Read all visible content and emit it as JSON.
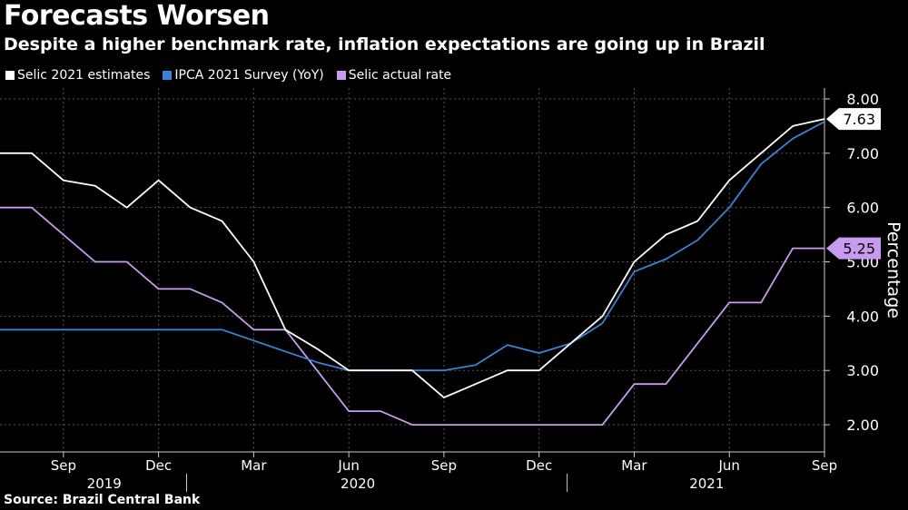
{
  "title": "Forecasts Worsen",
  "subtitle": "Despite a higher benchmark rate, inflation expectations are going up in Brazil",
  "source": "Source:  Brazil Central Bank",
  "chart_data": {
    "type": "line",
    "ylabel": "Percentage",
    "ylim": [
      1.5,
      8.2
    ],
    "y_ticks": [
      "2.00",
      "3.00",
      "4.00",
      "5.00",
      "6.00",
      "7.00",
      "8.00"
    ],
    "y_axis_side": "right",
    "x_range": [
      "2019-07",
      "2021-09"
    ],
    "x_tick_labels": [
      "Sep",
      "Dec",
      "Mar",
      "Jun",
      "Sep",
      "Dec",
      "Mar",
      "Jun",
      "Sep"
    ],
    "x_tick_months": [
      "2019-09",
      "2019-12",
      "2020-03",
      "2020-06",
      "2020-09",
      "2020-12",
      "2021-03",
      "2021-06",
      "2021-09"
    ],
    "year_labels": [
      {
        "label": "2019",
        "center": "2019-10"
      },
      {
        "label": "2020",
        "center": "2020-06"
      },
      {
        "label": "2021",
        "center": "2021-05"
      }
    ],
    "year_separators": [
      "2020-01",
      "2021-01"
    ],
    "grid": true,
    "legend_position": "top-left",
    "series": [
      {
        "name": "Selic 2021 estimates",
        "color": "#ffffff",
        "last_label": "7.63",
        "points": [
          [
            "2019-07",
            7.0
          ],
          [
            "2019-08",
            7.0
          ],
          [
            "2019-09",
            6.5
          ],
          [
            "2019-10",
            6.4
          ],
          [
            "2019-11",
            6.0
          ],
          [
            "2019-12",
            6.5
          ],
          [
            "2020-01",
            6.0
          ],
          [
            "2020-02",
            5.75
          ],
          [
            "2020-03",
            5.0
          ],
          [
            "2020-04",
            3.75
          ],
          [
            "2020-05",
            3.4
          ],
          [
            "2020-06",
            3.0
          ],
          [
            "2020-07",
            3.0
          ],
          [
            "2020-08",
            3.0
          ],
          [
            "2020-09",
            2.5
          ],
          [
            "2020-10",
            2.75
          ],
          [
            "2020-11",
            3.0
          ],
          [
            "2020-12",
            3.0
          ],
          [
            "2021-01",
            3.5
          ],
          [
            "2021-02",
            4.0
          ],
          [
            "2021-03",
            5.0
          ],
          [
            "2021-04",
            5.5
          ],
          [
            "2021-05",
            5.75
          ],
          [
            "2021-06",
            6.5
          ],
          [
            "2021-07",
            7.0
          ],
          [
            "2021-08",
            7.5
          ],
          [
            "2021-09",
            7.63
          ]
        ]
      },
      {
        "name": "IPCA 2021 Survey (YoY)",
        "color": "#3b82d6",
        "last_label": "",
        "points": [
          [
            "2019-07",
            3.75
          ],
          [
            "2019-08",
            3.75
          ],
          [
            "2019-09",
            3.75
          ],
          [
            "2019-10",
            3.75
          ],
          [
            "2019-11",
            3.75
          ],
          [
            "2019-12",
            3.75
          ],
          [
            "2020-01",
            3.75
          ],
          [
            "2020-02",
            3.75
          ],
          [
            "2020-03",
            3.55
          ],
          [
            "2020-04",
            3.35
          ],
          [
            "2020-05",
            3.15
          ],
          [
            "2020-06",
            3.0
          ],
          [
            "2020-07",
            3.0
          ],
          [
            "2020-08",
            3.0
          ],
          [
            "2020-09",
            3.0
          ],
          [
            "2020-10",
            3.1
          ],
          [
            "2020-11",
            3.47
          ],
          [
            "2020-12",
            3.32
          ],
          [
            "2021-01",
            3.5
          ],
          [
            "2021-02",
            3.87
          ],
          [
            "2021-03",
            4.82
          ],
          [
            "2021-04",
            5.05
          ],
          [
            "2021-05",
            5.4
          ],
          [
            "2021-06",
            6.0
          ],
          [
            "2021-07",
            6.8
          ],
          [
            "2021-08",
            7.27
          ],
          [
            "2021-09",
            7.58
          ]
        ]
      },
      {
        "name": "Selic actual rate",
        "color": "#c89bf0",
        "last_label": "5.25",
        "points": [
          [
            "2019-07",
            6.0
          ],
          [
            "2019-08",
            6.0
          ],
          [
            "2019-09",
            5.5
          ],
          [
            "2019-10",
            5.0
          ],
          [
            "2019-11",
            5.0
          ],
          [
            "2019-12",
            4.5
          ],
          [
            "2020-01",
            4.5
          ],
          [
            "2020-02",
            4.25
          ],
          [
            "2020-03",
            3.75
          ],
          [
            "2020-04",
            3.75
          ],
          [
            "2020-05",
            3.0
          ],
          [
            "2020-06",
            2.25
          ],
          [
            "2020-07",
            2.25
          ],
          [
            "2020-08",
            2.0
          ],
          [
            "2020-09",
            2.0
          ],
          [
            "2020-10",
            2.0
          ],
          [
            "2020-11",
            2.0
          ],
          [
            "2020-12",
            2.0
          ],
          [
            "2021-01",
            2.0
          ],
          [
            "2021-02",
            2.0
          ],
          [
            "2021-03",
            2.75
          ],
          [
            "2021-04",
            2.75
          ],
          [
            "2021-05",
            3.5
          ],
          [
            "2021-06",
            4.25
          ],
          [
            "2021-07",
            4.25
          ],
          [
            "2021-08",
            5.25
          ],
          [
            "2021-09",
            5.25
          ]
        ]
      }
    ]
  }
}
